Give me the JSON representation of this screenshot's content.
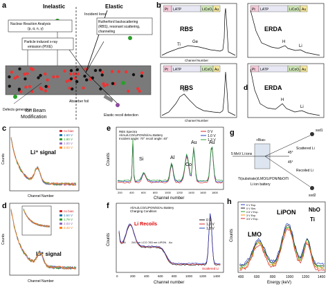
{
  "figure": {
    "panel_labels": [
      "a",
      "b",
      "c",
      "d",
      "e",
      "f",
      "g",
      "h"
    ]
  },
  "panel_a": {
    "label": "a",
    "inelastic": "Inelastic",
    "elastic": "Elastic",
    "incident_ions": "Incident Ions",
    "nra": "Nuclear Reaction Analysis",
    "nra_sub": "(p, α, n, γ)",
    "pixe": "Particle induced x-ray",
    "pixe_sub": "emission (PIXE)",
    "rbs": "Rutherford backscattering",
    "rbs_sub": "(RBS), resonant scattering,",
    "rbs_sub2": "channeling",
    "defects": "Defects generation",
    "absorber": "Absorber foil",
    "erd": "Elastic recoil detection",
    "ion_beam": "Ion Beam",
    "modification": "Modification"
  },
  "panel_b": {
    "label": "b",
    "top_left": {
      "title": "RBS",
      "labels": [
        "Ti",
        "Ge"
      ],
      "xlabel": "Channel Number",
      "layers": [
        "Pt",
        "LATP",
        "LiCoO₂",
        "Au"
      ]
    },
    "top_right": {
      "title": "ERDA",
      "labels": [
        "H",
        "Li"
      ],
      "layers": [
        "Pt",
        "LATP",
        "LiCoO₂",
        "Au"
      ]
    },
    "bottom_left": {
      "title": "RBS",
      "labels": [
        "Co"
      ],
      "xlabel": "Channel Number",
      "layers": [
        "Pt",
        "LATP",
        "LiCoO₂",
        "Au"
      ]
    },
    "bottom_right": {
      "title": "ERDA",
      "labels": [
        "H",
        "Li"
      ],
      "layers": [
        "Pt",
        "LATP",
        "LiCoO₂",
        "Au"
      ]
    }
  },
  "panel_c": {
    "label": "c",
    "signal": "Li⁺ signal",
    "ylabel": "Counts",
    "xlabel": "Channel Number",
    "legend": [
      "no bias",
      "1.60 V",
      "1.80 V",
      "2.00 V",
      "2.03 V"
    ],
    "colors": [
      "#d62728",
      "#1f77b4",
      "#2ca02c",
      "#9467bd",
      "#ff7f0e"
    ]
  },
  "panel_d": {
    "label": "d",
    "signal": "Li⁺ signal",
    "ylabel": "Counts",
    "xlabel": "Channel Number",
    "legend": [
      "no bias",
      "1.64 V",
      "1.79 V",
      "2.03 V",
      "2.43 V"
    ],
    "colors": [
      "#d62728",
      "#1f77b4",
      "#2ca02c",
      "#9467bd",
      "#ff7f0e"
    ]
  },
  "panel_e": {
    "label": "e",
    "title1": "RBS Spectra",
    "title2": "Al/Au/LCO/LiPON/Si/Au Battery",
    "title3": "Incident angle: 70°  recoil angle: 40°",
    "legend": [
      "0 V",
      "1.0 V",
      "1.3 V"
    ],
    "peaks": [
      "Si",
      "Al",
      "Co",
      "Au",
      "Au"
    ],
    "ylabel": "Counts",
    "xlabel": "Channel number",
    "xticks": [
      "200",
      "400",
      "600",
      "800",
      "1000",
      "1200",
      "1400",
      "1600",
      "1800"
    ]
  },
  "panel_f": {
    "label": "f",
    "title1": "Al/Au/LCO/LiPON/Si/Au Battery",
    "title2": "Charging Condition",
    "legend": [
      "0 V",
      "1.0 V",
      "1.3 V"
    ],
    "li_recoils": "Li Recoils",
    "scattered": "Scattered Li",
    "layers": [
      "Al",
      "240 nm LCO",
      "783 nm LiPON",
      "Au"
    ],
    "ylabel": "Counts",
    "xlabel": "Channel number",
    "xticks": [
      "0",
      "200",
      "400",
      "600",
      "800",
      "1000",
      "1200",
      "1400"
    ]
  },
  "panel_g": {
    "label": "g",
    "bias": "+Bias-",
    "beam": "5 MeV Li ions",
    "scattered": "Scattered Li",
    "recoiled": "Recoiled Li",
    "angle1": "45°",
    "angle2": "45°",
    "ssd1": "ssd1",
    "ssd2": "ssd2",
    "caption1": "Ti(substrate)/LMO/LiPON/NbO/Ti",
    "caption2": "Li ion battery"
  },
  "panel_h": {
    "label": "h",
    "ylabel": "Counts",
    "xlabel": "Energy (keV)",
    "xticks": [
      "400",
      "600",
      "800",
      "1000",
      "1200",
      "1400"
    ],
    "regions": [
      "LiPON",
      "LMO",
      "NbO",
      "Ti"
    ],
    "legend": [
      "0 V Exp.",
      "0 V Sim.",
      "2.5 V Exp.",
      "3 V Exp.",
      "3.5 V Exp."
    ]
  }
}
